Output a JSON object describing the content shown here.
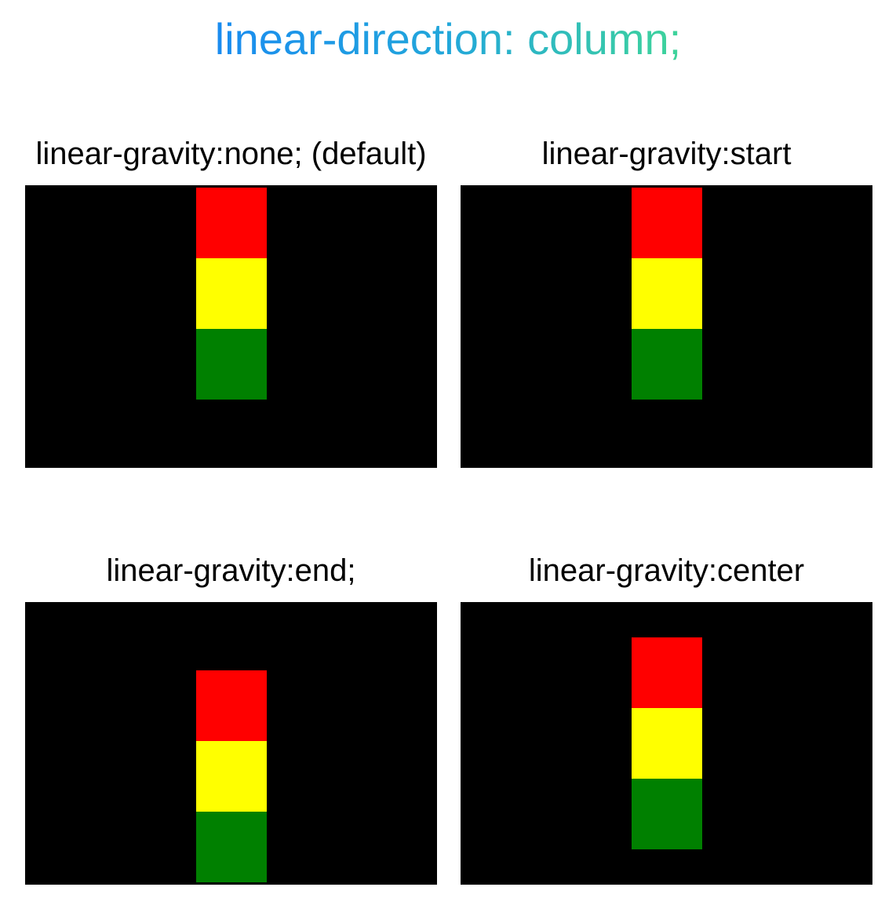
{
  "title": "linear-direction: column;",
  "colors": {
    "title_gradient_start": "#1a8cf0",
    "title_gradient_end": "#3fd49a",
    "container": "#000000",
    "block_1": "#ff0000",
    "block_2": "#ffff00",
    "block_3": "#008000"
  },
  "panels": [
    {
      "label": "linear-gravity:none; (default)",
      "gravity": "start"
    },
    {
      "label": "linear-gravity:start",
      "gravity": "start"
    },
    {
      "label": "linear-gravity:end;",
      "gravity": "end"
    },
    {
      "label": "linear-gravity:center",
      "gravity": "center"
    }
  ]
}
